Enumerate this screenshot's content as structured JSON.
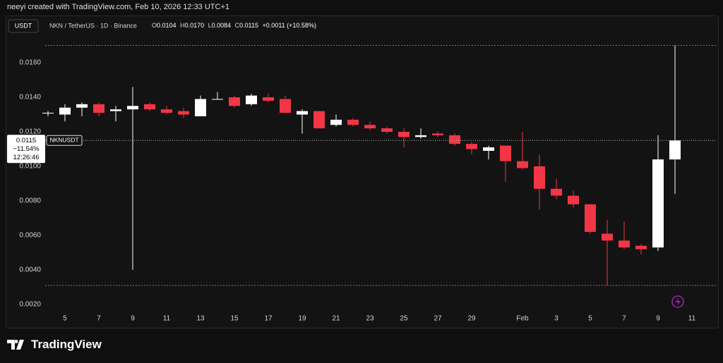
{
  "header": {
    "credit": "neeyi created with TradingView.com, Feb 10, 2026 12:33 UTC+1",
    "currency": "USDT",
    "symbol_info": "NKN / TetherUS · 1D · Binance",
    "o_key": "O",
    "o": "0.0104",
    "h_key": "H",
    "h": "0.0170",
    "l_key": "L",
    "l": "0.0084",
    "c_key": "C",
    "c": "0.0115",
    "change": "+0.0011 (+10.58%)"
  },
  "footer": {
    "brand": "TradingView"
  },
  "chart_data": {
    "type": "candlestick",
    "categories": [
      null,
      "5",
      null,
      "7",
      null,
      "9",
      null,
      "11",
      null,
      "13",
      null,
      "15",
      null,
      "17",
      null,
      "19",
      null,
      "21",
      null,
      "23",
      null,
      "25",
      null,
      "27",
      null,
      "29",
      null,
      null,
      "Feb",
      null,
      "3",
      null,
      "5",
      null,
      "7",
      null,
      "9",
      null,
      "11"
    ],
    "open": [
      0.0131,
      0.013,
      0.0134,
      0.0136,
      0.0132,
      0.0133,
      0.0136,
      0.0133,
      0.0132,
      0.0129,
      0.0139,
      0.014,
      0.0136,
      0.014,
      0.0139,
      0.013,
      0.0132,
      0.0124,
      0.0127,
      0.0124,
      0.0122,
      0.012,
      0.0117,
      0.0119,
      0.0118,
      0.0113,
      0.0109,
      0.0112,
      0.0103,
      0.01,
      0.0087,
      0.0083,
      0.0078,
      0.0061,
      0.0057,
      0.0054,
      0.0053,
      0.0104,
      null
    ],
    "high": [
      0.0132,
      0.0136,
      0.0137,
      0.0137,
      0.0135,
      0.0146,
      0.0137,
      0.0135,
      0.0134,
      0.0141,
      0.0143,
      0.0141,
      0.0142,
      0.0142,
      0.0141,
      0.0133,
      0.0132,
      0.013,
      0.0128,
      0.0126,
      0.0123,
      0.0122,
      0.0122,
      0.012,
      0.0119,
      0.0114,
      0.0112,
      0.0112,
      0.012,
      0.0107,
      0.0093,
      0.0086,
      0.0078,
      0.0069,
      0.0068,
      0.0055,
      0.0118,
      0.017,
      null
    ],
    "low": [
      0.0129,
      0.0126,
      0.0129,
      0.0129,
      0.0126,
      0.004,
      0.0132,
      0.013,
      0.0128,
      0.0129,
      0.0139,
      0.0134,
      0.0135,
      0.0137,
      0.0131,
      0.0119,
      0.0122,
      0.0123,
      0.0123,
      0.0121,
      0.0119,
      0.0111,
      0.0116,
      0.0117,
      0.0112,
      0.0107,
      0.0104,
      0.0091,
      0.0098,
      0.0075,
      0.0081,
      0.0076,
      0.0061,
      0.0031,
      0.0052,
      0.0049,
      0.0051,
      0.0084,
      null
    ],
    "close": [
      0.0131,
      0.0134,
      0.0136,
      0.0131,
      0.0133,
      0.0135,
      0.0133,
      0.0131,
      0.013,
      0.0139,
      0.0139,
      0.0135,
      0.0141,
      0.0138,
      0.0131,
      0.0132,
      0.0122,
      0.0127,
      0.0124,
      0.0122,
      0.012,
      0.0117,
      0.0118,
      0.0118,
      0.0113,
      0.011,
      0.0111,
      0.0103,
      0.0099,
      0.0087,
      0.0083,
      0.0078,
      0.0062,
      0.0057,
      0.0053,
      0.0052,
      0.0104,
      0.0115,
      null
    ],
    "up_color": "#ffffff",
    "down_color": "#f23645",
    "ylim": [
      0.00167,
      0.01739
    ],
    "yticks": [
      {
        "value": 0.002,
        "label": "0.0020"
      },
      {
        "value": 0.004,
        "label": "0.0040"
      },
      {
        "value": 0.006,
        "label": "0.0060"
      },
      {
        "value": 0.008,
        "label": "0.0080"
      },
      {
        "value": 0.01,
        "label": "0.0100"
      },
      {
        "value": 0.012,
        "label": "0.0120"
      },
      {
        "value": 0.014,
        "label": "0.0140"
      },
      {
        "value": 0.016,
        "label": "0.0160"
      }
    ],
    "grid": false,
    "high_line": 0.017,
    "low_line": 0.0031,
    "last_price": 0.0115,
    "change_label": "−11.54%",
    "countdown": "12:26:46",
    "symbol": "NKNUSDT"
  }
}
